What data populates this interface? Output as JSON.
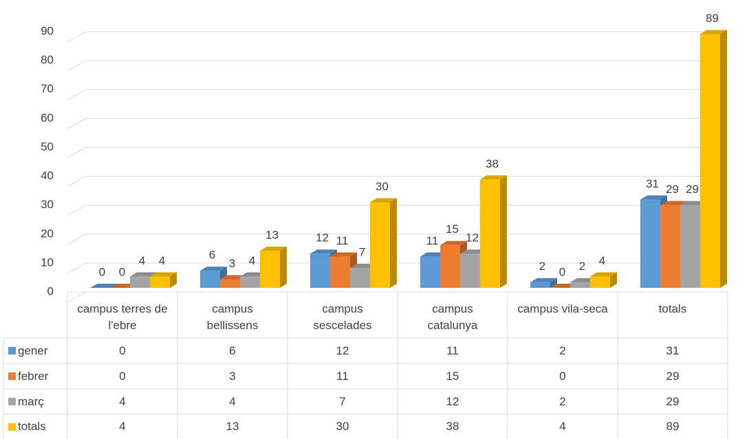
{
  "chart_data": {
    "type": "bar3d",
    "categories": [
      "campus terres de l'ebre",
      "campus bellissens",
      "campus sescelades",
      "campus catalunya",
      "campus vila-seca",
      "totals"
    ],
    "series": [
      {
        "name": "gener",
        "color": "#5b9bd5",
        "values": [
          0,
          6,
          12,
          11,
          2,
          31
        ]
      },
      {
        "name": "febrer",
        "color": "#ed7d31",
        "values": [
          0,
          3,
          11,
          15,
          0,
          29
        ]
      },
      {
        "name": "març",
        "color": "#a5a5a5",
        "values": [
          4,
          4,
          7,
          12,
          2,
          29
        ]
      },
      {
        "name": "totals",
        "color": "#ffc000",
        "values": [
          4,
          13,
          30,
          38,
          4,
          89
        ]
      }
    ],
    "ylim": [
      0,
      90
    ],
    "yticks": [
      0,
      10,
      20,
      30,
      40,
      50,
      60,
      70,
      80,
      90
    ],
    "grid": true
  }
}
